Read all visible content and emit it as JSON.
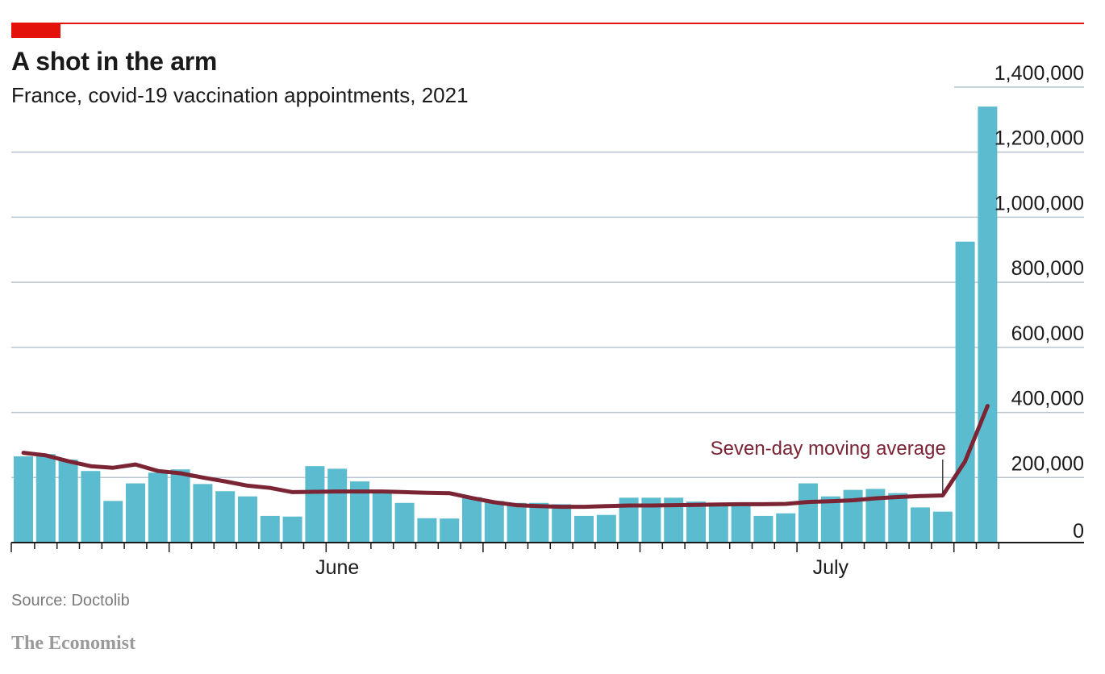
{
  "header": {
    "title": "A shot in the arm",
    "subtitle": "France, covid-19 vaccination appointments, 2021"
  },
  "footer": {
    "source": "Source: Doctolib",
    "brand": "The Economist"
  },
  "colors": {
    "bar": "#5bbccf",
    "line": "#7b2434",
    "accent": "#e3120b",
    "grid": "#b9c5cf"
  },
  "chart_data": {
    "type": "bar",
    "title": "A shot in the arm",
    "subtitle": "France, covid-19 vaccination appointments, 2021",
    "ylim": [
      0,
      1400000
    ],
    "yticks": [
      0,
      200000,
      400000,
      600000,
      800000,
      1000000,
      1200000,
      1400000
    ],
    "ytick_labels": [
      "0",
      "200,000",
      "400,000",
      "600,000",
      "800,000",
      "1,000,000",
      "1,200,000",
      "1,400,000"
    ],
    "x_labels": [
      {
        "text": "June",
        "day_index": 14
      },
      {
        "text": "July",
        "day_index": 36
      }
    ],
    "grid": true,
    "series": [
      {
        "kind": "bar",
        "values": [
          265000,
          272000,
          255000,
          220000,
          128000,
          182000,
          215000,
          225000,
          180000,
          158000,
          142000,
          82000,
          80000,
          235000,
          227000,
          188000,
          158000,
          122000,
          75000,
          74000,
          140000,
          128000,
          122000,
          122000,
          118000,
          82000,
          85000,
          138000,
          138000,
          138000,
          126000,
          118000,
          116000,
          82000,
          90000,
          182000,
          142000,
          162000,
          165000,
          152000,
          108000,
          95000,
          925000,
          1340000
        ]
      },
      {
        "kind": "line",
        "name": "Seven-day moving average",
        "values": [
          276000,
          268000,
          250000,
          235000,
          230000,
          240000,
          220000,
          213000,
          200000,
          188000,
          175000,
          168000,
          155000,
          156000,
          157000,
          157000,
          157000,
          155000,
          153000,
          152000,
          137000,
          124000,
          115000,
          112000,
          110000,
          110000,
          112000,
          114000,
          114000,
          115000,
          116000,
          117000,
          118000,
          118000,
          119000,
          125000,
          127000,
          130000,
          136000,
          140000,
          143000,
          145000,
          250000,
          420000
        ]
      }
    ],
    "annotation": {
      "text": "Seven-day moving average",
      "day_index": 41
    }
  }
}
